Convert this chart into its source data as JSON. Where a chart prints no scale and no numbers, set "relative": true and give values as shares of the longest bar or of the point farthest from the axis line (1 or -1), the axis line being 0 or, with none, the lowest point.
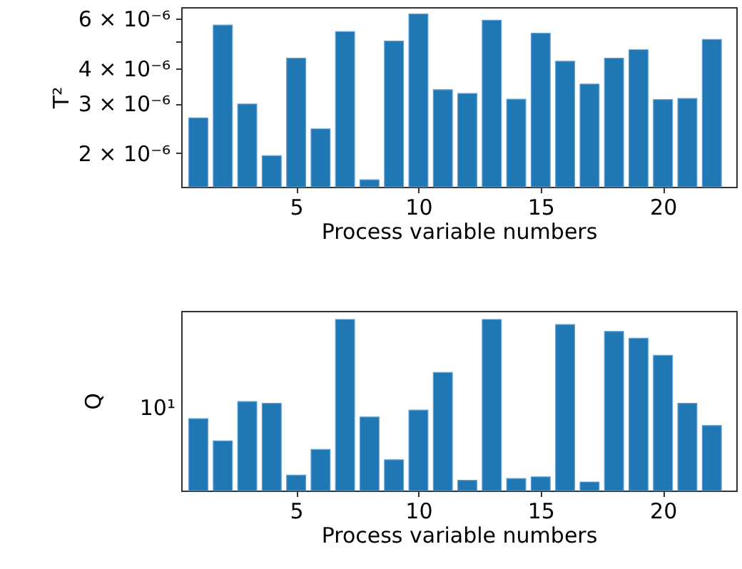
{
  "chart_data": [
    {
      "type": "bar",
      "ylabel": "T²",
      "xlabel": "Process variable numbers",
      "color": "#1f77b4",
      "log": true,
      "x": [
        1,
        2,
        3,
        4,
        5,
        6,
        7,
        8,
        9,
        10,
        11,
        12,
        13,
        14,
        15,
        16,
        17,
        18,
        19,
        20,
        21,
        22
      ],
      "values": [
        2.67e-06,
        5.7e-06,
        2.99e-06,
        1.96e-06,
        4.35e-06,
        2.44e-06,
        5.4e-06,
        1.61e-06,
        5e-06,
        6.24e-06,
        3.36e-06,
        3.26e-06,
        5.93e-06,
        3.11e-06,
        5.33e-06,
        4.24e-06,
        3.52e-06,
        4.35e-06,
        4.66e-06,
        3.1e-06,
        3.13e-06,
        5.07e-06
      ],
      "xlim": [
        0.3,
        23.0
      ],
      "xticks": [
        5,
        10,
        15,
        20
      ],
      "ylim": [
        1.52e-06,
        6.6e-06
      ],
      "yticks": [
        {
          "value": 2e-06,
          "label": "2 × 10⁻⁶"
        },
        {
          "value": 3e-06,
          "label": "3 × 10⁻⁶"
        },
        {
          "value": 4e-06,
          "label": "4 × 10⁻⁶"
        },
        {
          "value": 5e-06,
          "label": null
        },
        {
          "value": 6e-06,
          "label": "6 × 10⁻⁶"
        }
      ]
    },
    {
      "type": "bar",
      "ylabel": "Q",
      "xlabel": "Process variable numbers",
      "color": "#1f77b4",
      "relative": true,
      "x": [
        1,
        2,
        3,
        4,
        5,
        6,
        7,
        8,
        9,
        10,
        11,
        12,
        13,
        14,
        15,
        16,
        17,
        18,
        19,
        20,
        21,
        22
      ],
      "values": [
        0.42,
        0.29,
        0.52,
        0.51,
        0.09,
        0.24,
        1,
        0.43,
        0.18,
        0.47,
        0.69,
        0.06,
        1,
        0.07,
        0.08,
        0.97,
        0.05,
        0.93,
        0.89,
        0.79,
        0.51,
        0.38
      ],
      "xlim": [
        0.3,
        23.0
      ],
      "xticks": [
        5,
        10,
        15,
        20
      ],
      "annotations": [
        "10¹"
      ]
    }
  ]
}
